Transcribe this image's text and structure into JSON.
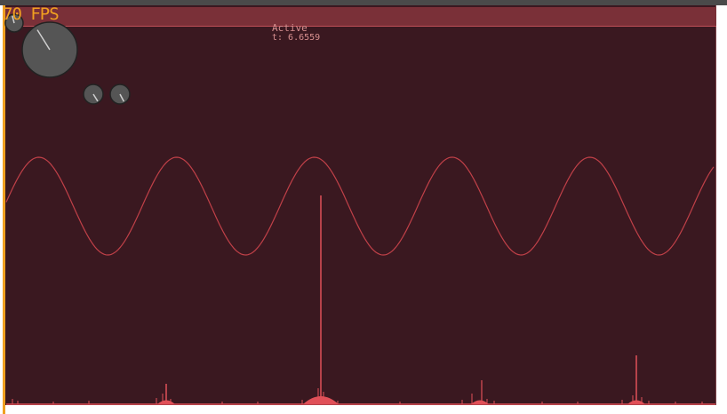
{
  "hud": {
    "fps_label": "70 FPS",
    "status": "Active",
    "time_readout": "t: 6.6559"
  },
  "colors": {
    "background": "#3a1820",
    "header": "#7a3038",
    "waveform": "#c04048",
    "spectrum": "#e05058",
    "accent": "#f0a020",
    "knob_fill": "#555555"
  },
  "knobs": [
    {
      "name": "main-knob",
      "value": 0.35
    },
    {
      "name": "small-knob-1",
      "value": 0.4
    },
    {
      "name": "small-knob-2",
      "value": 0.45
    },
    {
      "name": "mini-knob",
      "value": 0.5
    }
  ]
}
